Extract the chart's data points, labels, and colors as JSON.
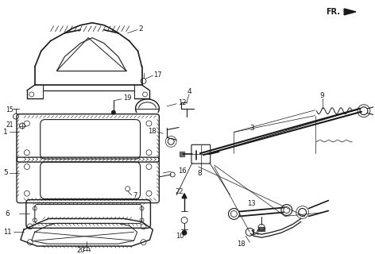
{
  "bg_color": "#ffffff",
  "line_color": "#1a1a1a",
  "fig_width": 4.72,
  "fig_height": 3.2,
  "dpi": 100
}
